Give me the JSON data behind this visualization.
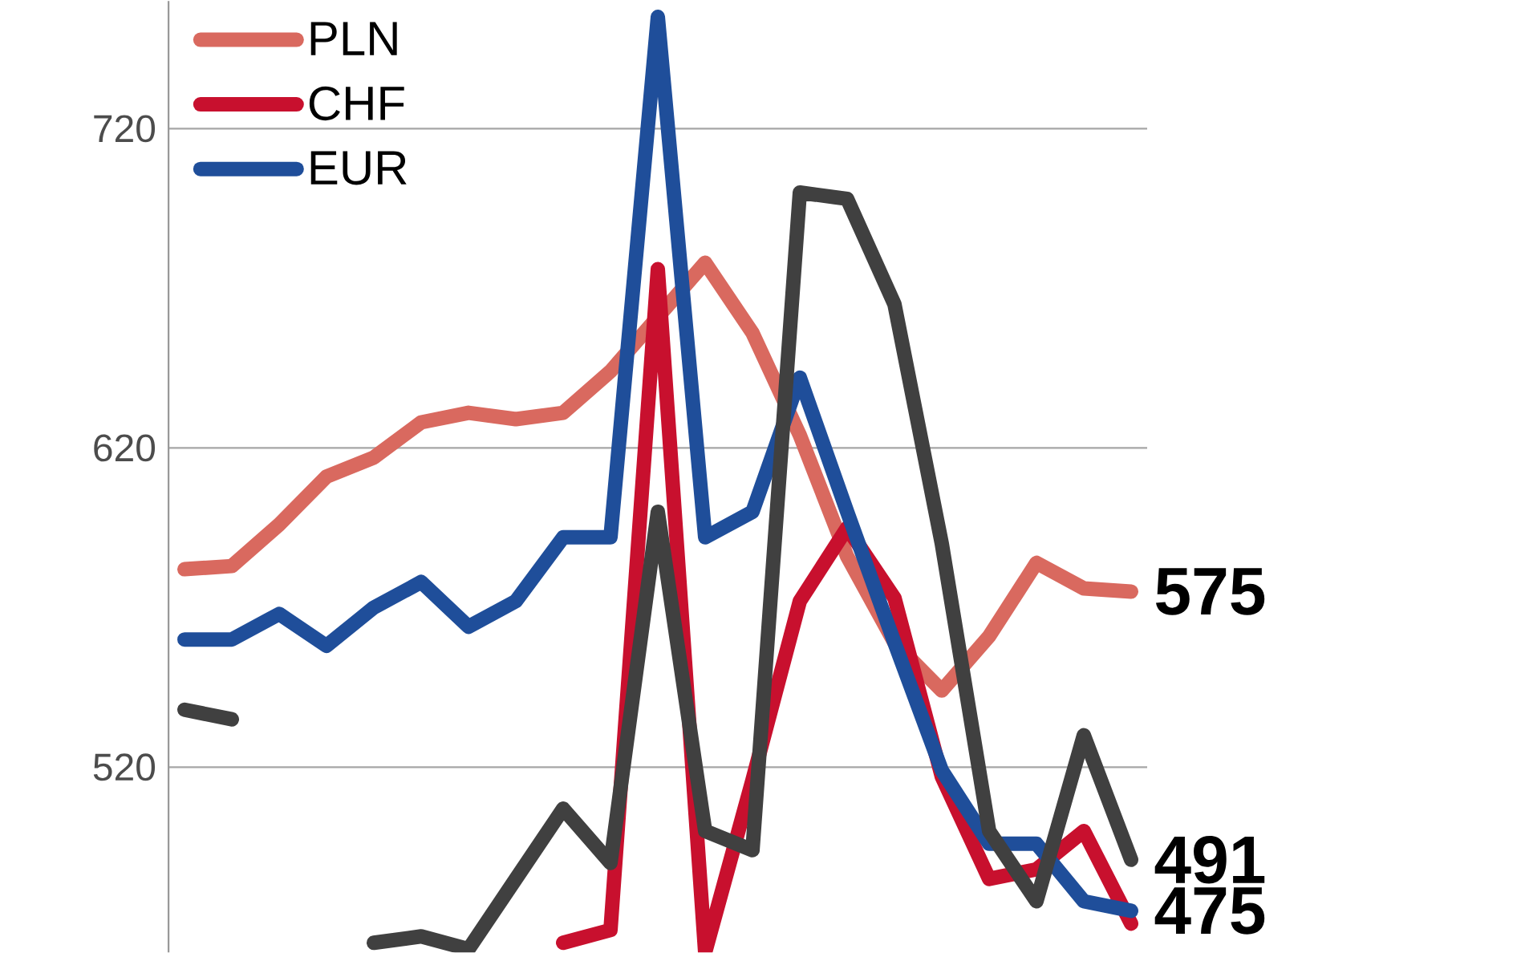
{
  "chart_data": {
    "type": "line",
    "categories": [
      null,
      null,
      null,
      null,
      null,
      null,
      null,
      null,
      null,
      null,
      null,
      null,
      null,
      null,
      null,
      null,
      null,
      null,
      null,
      null,
      null
    ],
    "series": [
      {
        "name": "PLN",
        "color": "#d9695f",
        "values": [
          582,
          583,
          596,
          611,
          617,
          628,
          631,
          629,
          631,
          644,
          661,
          678,
          656,
          624,
          586,
          559,
          544,
          561,
          584,
          576,
          575
        ],
        "value_labels": [
          null,
          null,
          null,
          null,
          null,
          null,
          null,
          null,
          null,
          null,
          null,
          null,
          null,
          null,
          null,
          null,
          null,
          null,
          null,
          null,
          "575"
        ]
      },
      {
        "name": "CHF",
        "color": "#c8102e",
        "values": [
          null,
          null,
          null,
          null,
          null,
          null,
          null,
          null,
          465,
          469,
          676,
          462,
          516,
          572,
          595,
          573,
          517,
          485,
          488,
          500,
          471
        ]
      },
      {
        "name": "EUR",
        "color": "#1f4e9a",
        "values": [
          560,
          560,
          568,
          558,
          570,
          578,
          564,
          572,
          592,
          592,
          755,
          592,
          600,
          642,
          600,
          559,
          519,
          496,
          496,
          478,
          475
        ],
        "value_labels": [
          null,
          null,
          null,
          null,
          null,
          null,
          null,
          null,
          null,
          null,
          null,
          null,
          null,
          null,
          null,
          null,
          null,
          null,
          null,
          null,
          "475"
        ]
      },
      {
        "color": "#404040",
        "values": [
          538,
          535,
          null,
          null,
          465,
          467,
          463,
          485,
          507,
          490,
          600,
          500,
          494,
          700,
          698,
          665,
          590,
          500,
          478,
          530,
          491
        ],
        "value_labels": [
          null,
          null,
          null,
          null,
          null,
          null,
          null,
          null,
          null,
          null,
          null,
          null,
          null,
          null,
          null,
          null,
          null,
          null,
          null,
          null,
          "491"
        ]
      }
    ],
    "ylim": [
      462,
      760
    ],
    "yticks": [
      520,
      620,
      720
    ],
    "grid": "y",
    "legend": "top left",
    "tick_labels": "y"
  }
}
